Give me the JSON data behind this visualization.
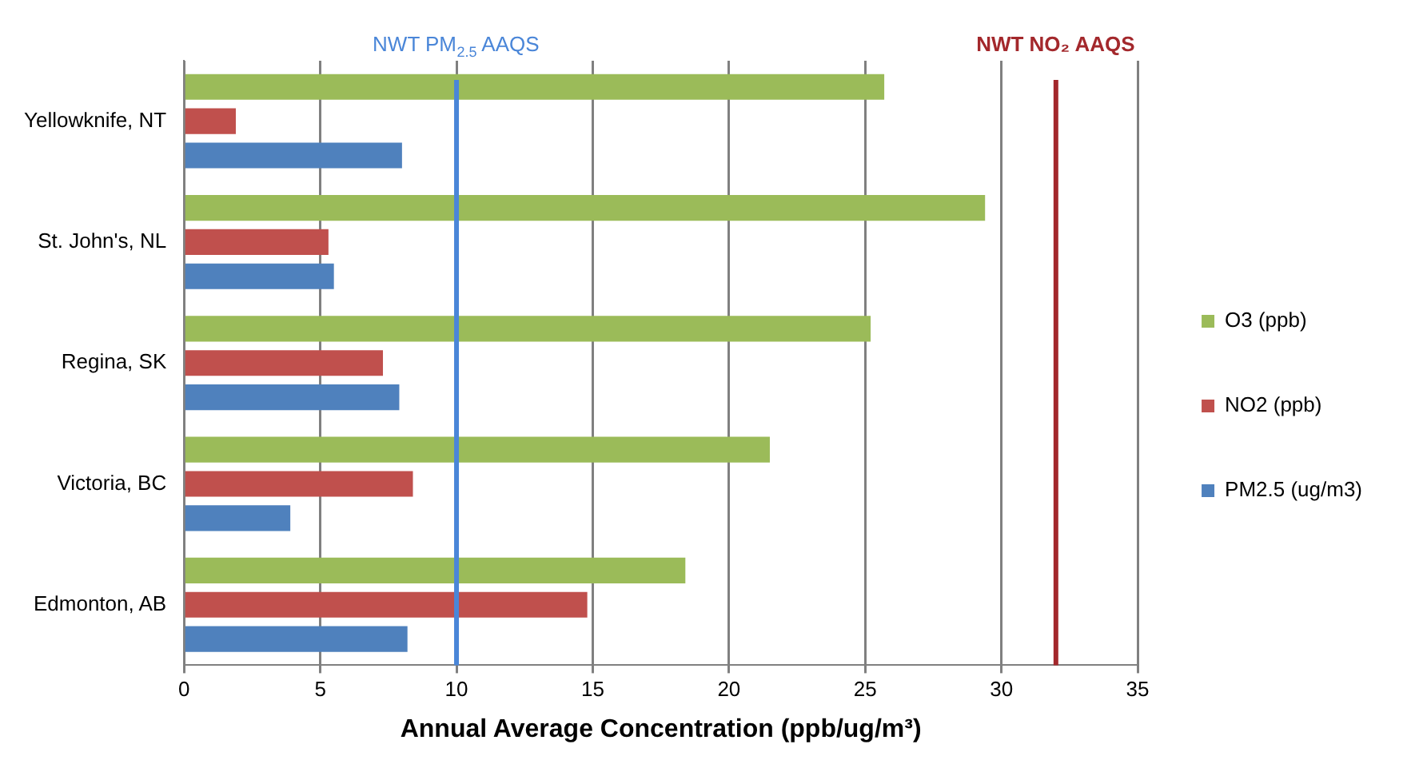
{
  "chart_data": {
    "type": "bar",
    "orientation": "horizontal",
    "xlabel": "Annual Average Concentration (ppb/ug/m³)",
    "categories": [
      "Yellowknife, NT",
      "St. John's, NL",
      "Regina, SK",
      "Victoria, BC",
      "Edmonton, AB"
    ],
    "series": [
      {
        "name": "O3 (ppb)",
        "color": "#9bbb59",
        "values": [
          25.7,
          29.4,
          25.2,
          21.5,
          18.4
        ]
      },
      {
        "name": "NO2 (ppb)",
        "color": "#c0504d",
        "values": [
          1.9,
          5.3,
          7.3,
          8.4,
          14.8
        ]
      },
      {
        "name": "PM2.5 (ug/m3)",
        "color": "#4f81bd",
        "values": [
          8.0,
          5.5,
          7.9,
          3.9,
          8.2
        ]
      }
    ],
    "xlim": [
      0,
      35
    ],
    "xticks": [
      0,
      5,
      10,
      15,
      20,
      25,
      30,
      35
    ],
    "grid": "x",
    "legend": "right",
    "ref_lines": [
      {
        "axis": "x",
        "value": 10,
        "label": "NWT PM$_{2.5}$ AAQS",
        "color": "#4a86d8"
      },
      {
        "axis": "x",
        "value": 32,
        "label": "NWT NO₂ AAQS",
        "color": "#a3282c"
      }
    ]
  }
}
